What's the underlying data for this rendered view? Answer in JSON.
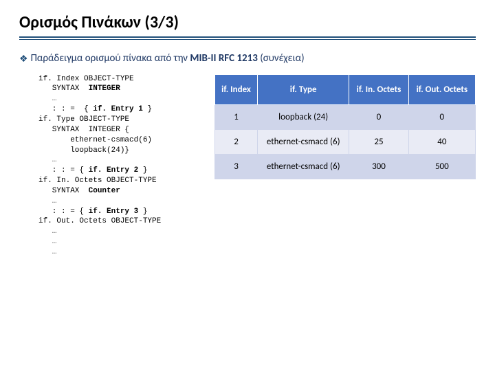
{
  "title": "Ορισμός Πινάκων (3/3)",
  "subtitle_prefix": "Παράδειγμα ορισμού πίνακα από την ",
  "subtitle_bold": "MIB-II RFC 1213",
  "subtitle_suffix": " (συνέχεια)",
  "code": {
    "l1": "if. Index OBJECT-TYPE",
    "l2a": "   SYNTAX  ",
    "l2b": "INTEGER",
    "l3": "   …",
    "l4a": "   : : =  { ",
    "l4b": "if. Entry 1",
    "l4c": " }",
    "l5": "if. Type OBJECT-TYPE",
    "l6": "   SYNTAX  INTEGER {",
    "l7": "       ethernet-csmacd(6)",
    "l8": "       loopback(24)}",
    "l9": "   …",
    "l10a": "   : : = { ",
    "l10b": "if. Entry 2",
    "l10c": " }",
    "l11": "if. In. Octets OBJECT-TYPE",
    "l12a": "   SYNTAX  ",
    "l12b": "Counter",
    "l13": "   …",
    "l14a": "   : : = { ",
    "l14b": "if. Entry 3",
    "l14c": " }",
    "l15": "if. Out. Octets OBJECT-TYPE",
    "l16": "   …",
    "l17": "   …",
    "l18": "   …"
  },
  "table": {
    "headers": {
      "c0": "if. Index",
      "c1": "if. Type",
      "c2": "if. In. Octets",
      "c3": "if. Out. Octets"
    },
    "rows": [
      {
        "c0": "1",
        "c1": "loopback (24)",
        "c2": "0",
        "c3": "0"
      },
      {
        "c0": "2",
        "c1": "ethernet-csmacd (6)",
        "c2": "25",
        "c3": "40"
      },
      {
        "c0": "3",
        "c1": "ethernet-csmacd (6)",
        "c2": "300",
        "c3": "500"
      }
    ]
  },
  "style": {
    "th_bg": "#4472c4",
    "th_fg": "#ffffff",
    "row_odd_bg": "#cfd5ea",
    "row_even_bg": "#e9ebf5",
    "border_color": "#cfd5ea",
    "title_fontsize": 24,
    "subtitle_fontsize": 15,
    "code_fontsize": 11,
    "table_fontsize": 13,
    "accent_color": "#1f4e79"
  }
}
